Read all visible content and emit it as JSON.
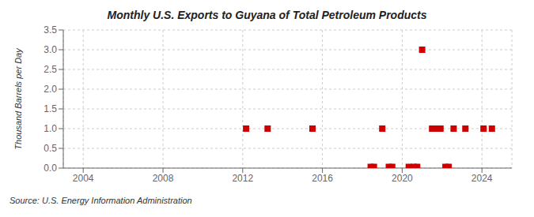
{
  "chart_data": {
    "type": "scatter",
    "title": "Monthly U.S. Exports to Guyana of Total Petroleum Products",
    "ylabel": "Thousand Barrels per Day",
    "annotations": [
      "Source: U.S. Energy Information Administration"
    ],
    "x": [
      2012.17,
      2013.25,
      2015.5,
      2018.42,
      2018.58,
      2019.0,
      2019.33,
      2019.5,
      2020.33,
      2020.58,
      2020.75,
      2021.0,
      2021.5,
      2021.58,
      2021.67,
      2021.75,
      2021.83,
      2021.92,
      2022.17,
      2022.33,
      2022.58,
      2023.17,
      2024.08,
      2024.5
    ],
    "values": [
      1.0,
      1.0,
      1.0,
      0.03,
      0.03,
      1.0,
      0.03,
      0.03,
      0.03,
      0.03,
      0.03,
      3.0,
      1.0,
      1.0,
      1.0,
      1.0,
      1.0,
      1.0,
      0.03,
      0.03,
      1.0,
      1.0,
      1.0,
      1.0
    ],
    "color": "#cc0000",
    "marker": "square",
    "xlim": [
      2003.0,
      2025.5
    ],
    "ylim": [
      0.0,
      3.5
    ],
    "xticks": [
      2004,
      2008,
      2012,
      2016,
      2020,
      2024
    ],
    "yticks": [
      {
        "value": 0,
        "label": "0.0"
      },
      0.5,
      {
        "value": 1,
        "label": "1.0"
      },
      1.5,
      {
        "value": 2,
        "label": "2.0"
      },
      2.5,
      {
        "value": 3,
        "label": "3.0"
      },
      3.5
    ],
    "grid": true
  }
}
